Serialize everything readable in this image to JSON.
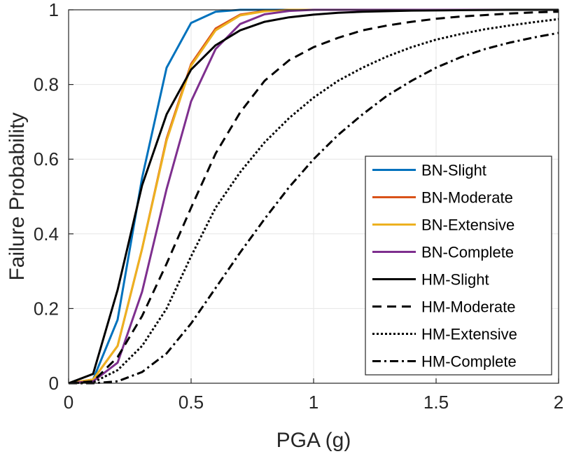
{
  "chart_data": {
    "type": "line",
    "title": "",
    "xlabel": "PGA (g)",
    "ylabel": "Failure Probability",
    "xlim": [
      0,
      2
    ],
    "ylim": [
      0,
      1
    ],
    "xticks": [
      0,
      0.5,
      1,
      1.5,
      2
    ],
    "xtick_labels": [
      "0",
      "0.5",
      "1",
      "1.5",
      "2"
    ],
    "yticks": [
      0,
      0.2,
      0.4,
      0.6,
      0.8,
      1
    ],
    "ytick_labels": [
      "0",
      "0.2",
      "0.4",
      "0.6",
      "0.8",
      "1"
    ],
    "grid": true,
    "legend_position": "bottom-right",
    "series": [
      {
        "name": "BN-Slight",
        "color": "#0072BD",
        "dash": "solid",
        "x": [
          0,
          0.1,
          0.2,
          0.3,
          0.4,
          0.5,
          0.6,
          0.7,
          0.8,
          0.9,
          1.0,
          1.2,
          1.5,
          2.0
        ],
        "y": [
          0,
          0.01,
          0.17,
          0.55,
          0.845,
          0.965,
          0.995,
          1.0,
          1.0,
          1.0,
          1.0,
          1.0,
          1.0,
          1.0
        ]
      },
      {
        "name": "BN-Moderate",
        "color": "#D95319",
        "dash": "solid",
        "x": [
          0,
          0.1,
          0.2,
          0.3,
          0.4,
          0.5,
          0.6,
          0.7,
          0.8,
          0.9,
          1.0,
          1.2,
          1.5,
          2.0
        ],
        "y": [
          0,
          0.01,
          0.1,
          0.36,
          0.655,
          0.855,
          0.95,
          0.987,
          0.997,
          1.0,
          1.0,
          1.0,
          1.0,
          1.0
        ]
      },
      {
        "name": "BN-Extensive",
        "color": "#EDB120",
        "dash": "solid",
        "x": [
          0,
          0.1,
          0.2,
          0.3,
          0.4,
          0.5,
          0.6,
          0.7,
          0.8,
          0.9,
          1.0,
          1.2,
          1.5,
          2.0
        ],
        "y": [
          0,
          0.01,
          0.1,
          0.36,
          0.65,
          0.85,
          0.945,
          0.985,
          0.996,
          1.0,
          1.0,
          1.0,
          1.0,
          1.0
        ]
      },
      {
        "name": "BN-Complete",
        "color": "#7E2F8E",
        "dash": "solid",
        "x": [
          0,
          0.1,
          0.2,
          0.3,
          0.4,
          0.5,
          0.6,
          0.7,
          0.8,
          0.9,
          1.0,
          1.2,
          1.5,
          2.0
        ],
        "y": [
          0,
          0.005,
          0.055,
          0.245,
          0.52,
          0.755,
          0.895,
          0.962,
          0.988,
          0.997,
          1.0,
          1.0,
          1.0,
          1.0
        ]
      },
      {
        "name": "HM-Slight",
        "color": "#000000",
        "dash": "solid",
        "x": [
          0,
          0.1,
          0.2,
          0.3,
          0.4,
          0.5,
          0.6,
          0.7,
          0.8,
          0.9,
          1.0,
          1.1,
          1.2,
          1.4,
          1.6,
          1.8,
          2.0
        ],
        "y": [
          0,
          0.025,
          0.25,
          0.53,
          0.72,
          0.84,
          0.905,
          0.945,
          0.968,
          0.98,
          0.987,
          0.992,
          0.995,
          0.998,
          0.999,
          1.0,
          1.0
        ]
      },
      {
        "name": "HM-Moderate",
        "color": "#000000",
        "dash": "dashed",
        "x": [
          0,
          0.1,
          0.2,
          0.3,
          0.4,
          0.5,
          0.6,
          0.7,
          0.8,
          0.9,
          1.0,
          1.1,
          1.2,
          1.3,
          1.4,
          1.5,
          1.6,
          1.7,
          1.8,
          1.9,
          2.0
        ],
        "y": [
          0,
          0.005,
          0.07,
          0.18,
          0.32,
          0.47,
          0.615,
          0.725,
          0.81,
          0.865,
          0.9,
          0.925,
          0.945,
          0.958,
          0.968,
          0.976,
          0.982,
          0.986,
          0.99,
          0.993,
          0.995
        ]
      },
      {
        "name": "HM-Extensive",
        "color": "#000000",
        "dash": "dotted",
        "x": [
          0,
          0.1,
          0.2,
          0.3,
          0.4,
          0.5,
          0.6,
          0.7,
          0.8,
          0.9,
          1.0,
          1.1,
          1.2,
          1.3,
          1.4,
          1.5,
          1.6,
          1.7,
          1.8,
          1.9,
          2.0
        ],
        "y": [
          0,
          0.002,
          0.035,
          0.1,
          0.2,
          0.34,
          0.47,
          0.565,
          0.645,
          0.71,
          0.765,
          0.81,
          0.845,
          0.875,
          0.9,
          0.92,
          0.935,
          0.948,
          0.958,
          0.967,
          0.975
        ]
      },
      {
        "name": "HM-Complete",
        "color": "#000000",
        "dash": "dashdot",
        "x": [
          0,
          0.1,
          0.2,
          0.3,
          0.4,
          0.5,
          0.6,
          0.7,
          0.8,
          0.9,
          1.0,
          1.1,
          1.2,
          1.3,
          1.4,
          1.5,
          1.6,
          1.7,
          1.8,
          1.9,
          2.0
        ],
        "y": [
          0,
          0.0,
          0.005,
          0.03,
          0.08,
          0.16,
          0.255,
          0.35,
          0.44,
          0.525,
          0.6,
          0.665,
          0.72,
          0.77,
          0.81,
          0.845,
          0.873,
          0.895,
          0.912,
          0.926,
          0.938
        ]
      }
    ]
  }
}
